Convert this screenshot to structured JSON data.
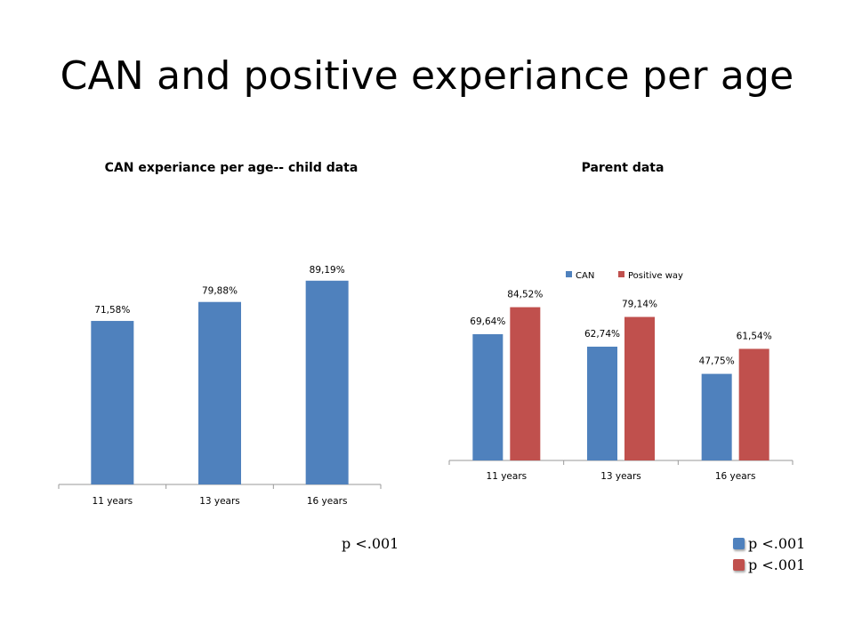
{
  "slide": {
    "title": "CAN and positive experiance per age"
  },
  "colors": {
    "can": "#4F81BD",
    "positive": "#C0504D",
    "axis": "#9A9A9A"
  },
  "notes": {
    "child_p": "p <.001",
    "parent_can_p": "p <.001",
    "parent_positive_p": "p <.001"
  },
  "chart_data": [
    {
      "type": "bar",
      "title": "CAN experiance per age-- child data",
      "categories": [
        "11 years",
        "13 years",
        "16 years"
      ],
      "values": [
        71.58,
        79.88,
        89.19
      ],
      "data_labels": [
        "71,58%",
        "79,88%",
        "89,19%"
      ],
      "ylim": [
        0,
        100
      ],
      "legend": "none",
      "grid": false
    },
    {
      "type": "bar",
      "title": "Parent data",
      "categories": [
        "11 years",
        "13 years",
        "16 years"
      ],
      "series": [
        {
          "name": "CAN",
          "values": [
            69.64,
            62.74,
            47.75
          ],
          "data_labels": [
            "69,64%",
            "62,74%",
            "47,75%"
          ]
        },
        {
          "name": "Positive way",
          "values": [
            84.52,
            79.14,
            61.54
          ],
          "data_labels": [
            "84,52%",
            "79,14%",
            "61,54%"
          ]
        }
      ],
      "ylim": [
        0,
        100
      ],
      "legend": "top",
      "grid": false
    }
  ]
}
